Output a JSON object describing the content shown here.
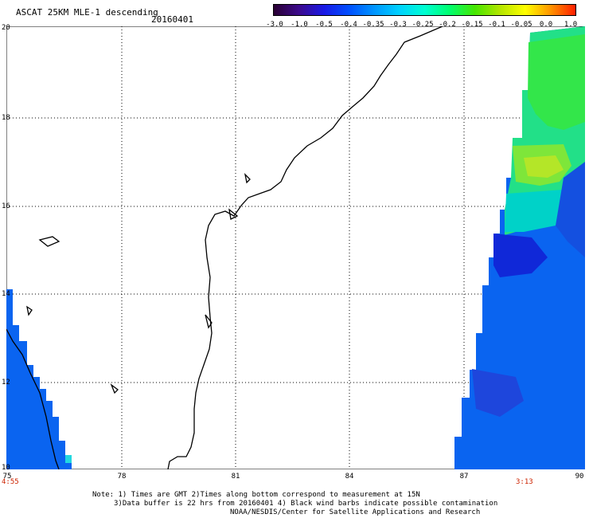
{
  "header": {
    "title": "ASCAT 25KM MLE-1 descending",
    "date": "20160401"
  },
  "colorbar": {
    "labels": [
      "-3.0",
      "-1.0",
      "-0.5",
      "-0.4",
      "-0.35",
      "-0.3",
      "-0.25",
      "-0.2",
      "-0.15",
      "-0.1",
      "-0.05",
      "0.0",
      "1.0"
    ],
    "colors": [
      "#2a0033",
      "#3c0a8c",
      "#1a1ae6",
      "#0050ff",
      "#0096ff",
      "#00d2ff",
      "#00ffd2",
      "#00ff6e",
      "#46e600",
      "#b4e600",
      "#ffff00",
      "#ff9600",
      "#ff1e00"
    ]
  },
  "axes": {
    "lat_labels": [
      "20",
      "18",
      "16",
      "14",
      "12",
      "10"
    ],
    "lon_labels": [
      "75",
      "78",
      "81",
      "84",
      "87",
      "90"
    ]
  },
  "times": {
    "left": "4:55",
    "right": "3:13"
  },
  "notes": {
    "line1": "Note: 1) Times are GMT 2)Times along bottom correspond to measurement at 15N",
    "line2": "3)Data buffer is 22 hrs from 20160401 4) Black wind barbs indicate possible contamination",
    "line3": "NOAA/NESDIS/Center for Satellite Applications and Research"
  }
}
